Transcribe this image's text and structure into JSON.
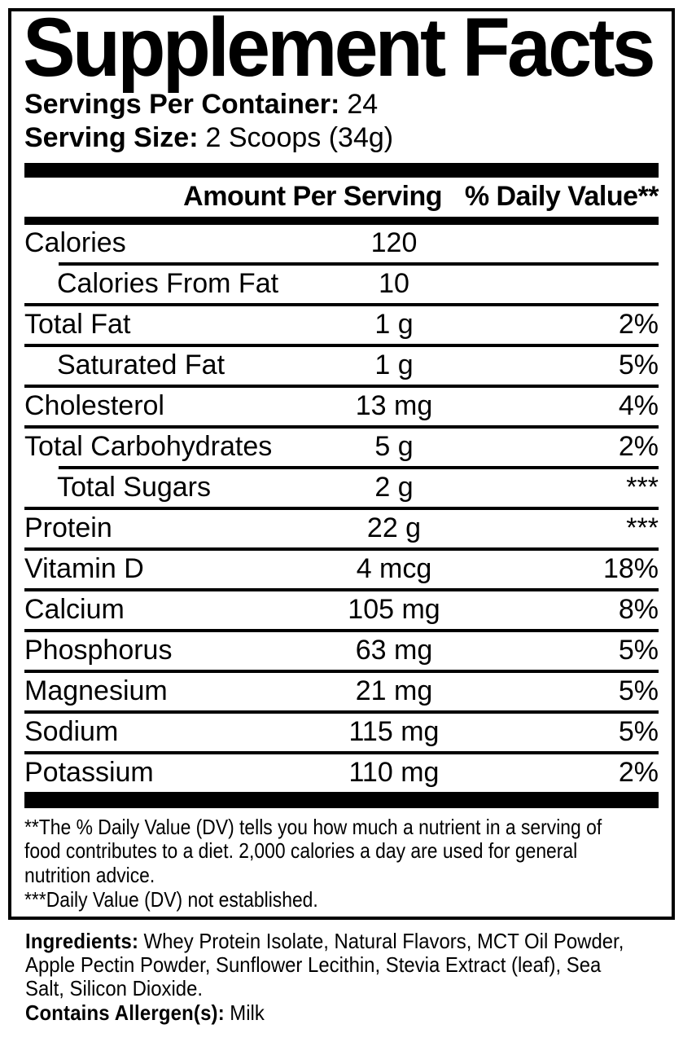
{
  "colors": {
    "text": "#000000",
    "background": "#ffffff"
  },
  "panel": {
    "title": "Supplement Facts",
    "servings_per_container": {
      "label": "Servings Per Container:",
      "value": "24"
    },
    "serving_size": {
      "label": "Serving Size:",
      "value": "2 Scoops (34g)"
    },
    "table": {
      "header": {
        "amount_col": "Amount Per Serving",
        "dv_col": "% Daily Value**"
      },
      "rows": [
        {
          "name": "Calories",
          "amount": "120",
          "dv": "",
          "indent": false,
          "sep_above": "none"
        },
        {
          "name": "Calories From Fat",
          "amount": "10",
          "dv": "",
          "indent": true,
          "sep_above": "indent"
        },
        {
          "name": "Total Fat",
          "amount": "1 g",
          "dv": "2%",
          "indent": false,
          "sep_above": "full"
        },
        {
          "name": "Saturated Fat",
          "amount": "1 g",
          "dv": "5%",
          "indent": true,
          "sep_above": "full"
        },
        {
          "name": "Cholesterol",
          "amount": "13 mg",
          "dv": "4%",
          "indent": false,
          "sep_above": "full"
        },
        {
          "name": "Total Carbohydrates",
          "amount": "5 g",
          "dv": "2%",
          "indent": false,
          "sep_above": "full"
        },
        {
          "name": "Total Sugars",
          "amount": "2 g",
          "dv": "***",
          "indent": true,
          "sep_above": "indent"
        },
        {
          "name": "Protein",
          "amount": "22 g",
          "dv": "***",
          "indent": false,
          "sep_above": "full"
        },
        {
          "name": "Vitamin D",
          "amount": "4 mcg",
          "dv": "18%",
          "indent": false,
          "sep_above": "full"
        },
        {
          "name": "Calcium",
          "amount": "105 mg",
          "dv": "8%",
          "indent": false,
          "sep_above": "full"
        },
        {
          "name": "Phosphorus",
          "amount": "63 mg",
          "dv": "5%",
          "indent": false,
          "sep_above": "full"
        },
        {
          "name": "Magnesium",
          "amount": "21 mg",
          "dv": "5%",
          "indent": false,
          "sep_above": "full"
        },
        {
          "name": "Sodium",
          "amount": "115 mg",
          "dv": "5%",
          "indent": false,
          "sep_above": "full"
        },
        {
          "name": "Potassium",
          "amount": "110 mg",
          "dv": "2%",
          "indent": false,
          "sep_above": "full"
        }
      ]
    },
    "footnotes": {
      "dv_note_lines": [
        "**The % Daily Value (DV) tells you how much a nutrient in a serving of",
        "food contributes to a diet. 2,000 calories a day are used for general",
        "nutrition advice."
      ],
      "not_established": "***Daily Value (DV) not established."
    }
  },
  "ingredients_section": {
    "label": "Ingredients:",
    "lines": [
      "Whey Protein Isolate, Natural Flavors, MCT Oil Powder,",
      "Apple Pectin Powder, Sunflower Lecithin, Stevia Extract (leaf), Sea",
      "Salt, Silicon Dioxide."
    ],
    "contains": {
      "label": "Contains Allergen(s):",
      "value": "Milk"
    }
  }
}
